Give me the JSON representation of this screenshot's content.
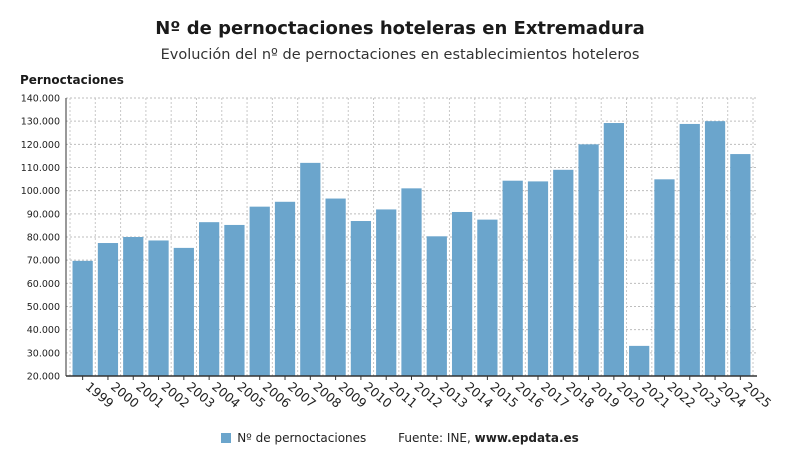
{
  "chart_data": {
    "type": "bar",
    "title": "Nº de pernoctaciones hoteleras en Extremadura",
    "subtitle": "Evolución del nº de pernoctaciones en establecimientos hoteleros",
    "ylabel": "Pernoctaciones",
    "xlabel": "",
    "ylim": [
      20000,
      140000
    ],
    "yticks": [
      20000,
      30000,
      40000,
      50000,
      60000,
      70000,
      80000,
      90000,
      100000,
      110000,
      120000,
      130000,
      140000
    ],
    "ytick_labels": [
      "20.000",
      "30.000",
      "40.000",
      "50.000",
      "60.000",
      "70.000",
      "80.000",
      "90.000",
      "100.000",
      "110.000",
      "120.000",
      "130.000",
      "140.000"
    ],
    "categories": [
      "1999",
      "2000",
      "2001",
      "2002",
      "2003",
      "2004",
      "2005",
      "2006",
      "2007",
      "2008",
      "2009",
      "2010",
      "2011",
      "2012",
      "2013",
      "2014",
      "2015",
      "2016",
      "2017",
      "2018",
      "2019",
      "2020",
      "2021",
      "2022",
      "2023",
      "2024",
      "2025"
    ],
    "series": [
      {
        "name": "Nº de pernoctaciones",
        "color": "#6ba5cc",
        "values": [
          69700,
          77400,
          80000,
          78500,
          75300,
          86400,
          85200,
          93100,
          95200,
          112000,
          96600,
          86900,
          91900,
          101000,
          80300,
          90800,
          87500,
          104300,
          104000,
          109000,
          120000,
          129200,
          33000,
          104900,
          128800,
          130000,
          115800
        ]
      }
    ],
    "grid": true,
    "legend": "bottom-center"
  },
  "source": {
    "label": "Fuente: INE,",
    "site": "www.epdata.es"
  }
}
